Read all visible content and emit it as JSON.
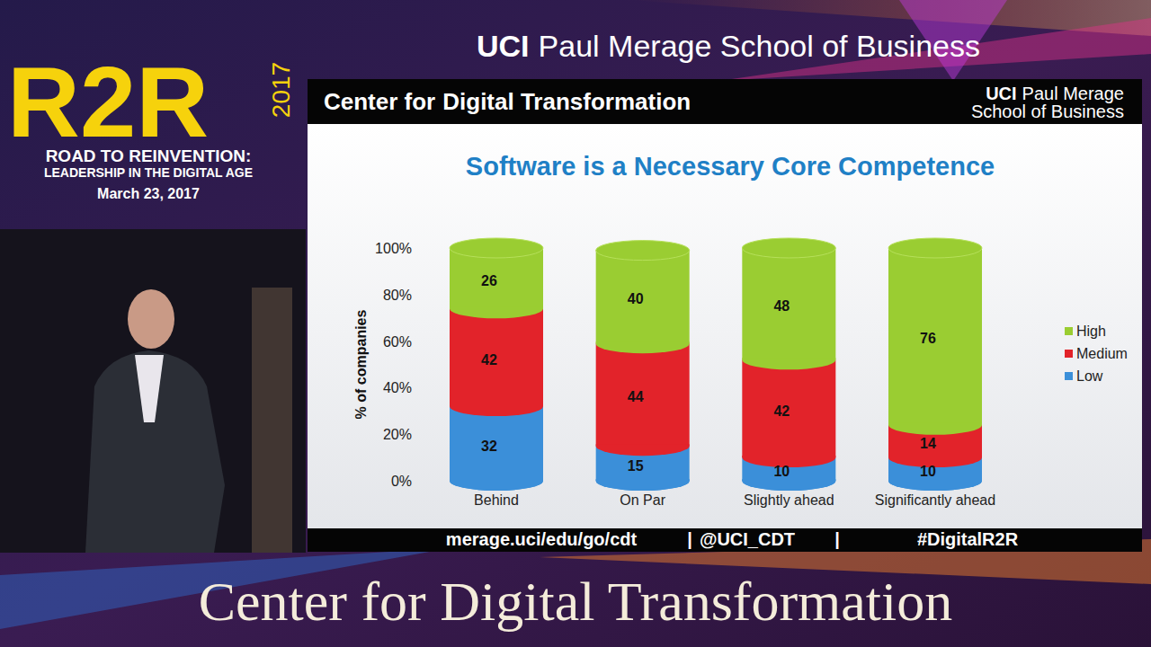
{
  "chart_data": {
    "type": "bar",
    "stacked": true,
    "title": "Software is a Necessary Core Competence",
    "y_label": "% of companies",
    "categories": [
      "Behind",
      "On Par",
      "Slightly ahead",
      "Significantly ahead"
    ],
    "series": [
      {
        "name": "Low",
        "color": "#3b8fd9",
        "values": [
          32,
          15,
          10,
          10
        ]
      },
      {
        "name": "Medium",
        "color": "#e2232a",
        "values": [
          42,
          44,
          42,
          14
        ]
      },
      {
        "name": "High",
        "color": "#9acd32",
        "values": [
          26,
          40,
          48,
          76
        ]
      }
    ],
    "ylim": [
      0,
      100
    ],
    "yticks": [
      {
        "value": 0,
        "label": "0%"
      },
      {
        "value": 20,
        "label": "20%"
      },
      {
        "value": 40,
        "label": "40%"
      },
      {
        "value": 60,
        "label": "60%"
      },
      {
        "value": 80,
        "label": "80%"
      },
      {
        "value": 100,
        "label": "100%"
      }
    ],
    "grid": false,
    "legend": "right",
    "data_labels": true
  },
  "page": {
    "banner": {
      "brand": "UCI",
      "school": "Paul Merage School of Business"
    },
    "event": {
      "logo": "R2R",
      "year": "2017",
      "line1": "ROAD TO REINVENTION:",
      "line2": "LEADERSHIP IN THE DIGITAL AGE",
      "date": "March 23, 2017"
    },
    "slide_header": {
      "lead": "Center for",
      "bold": "Digital Transformation",
      "logo_brand": "UCI",
      "logo_line1": "Paul Merage",
      "logo_line2": "School of Business"
    },
    "footer": {
      "items": [
        "merage.uci/edu/go/cdt",
        "@UCI_CDT",
        "#DigitalR2R"
      ],
      "separator": "|"
    },
    "caption": "Center for Digital Transformation"
  }
}
